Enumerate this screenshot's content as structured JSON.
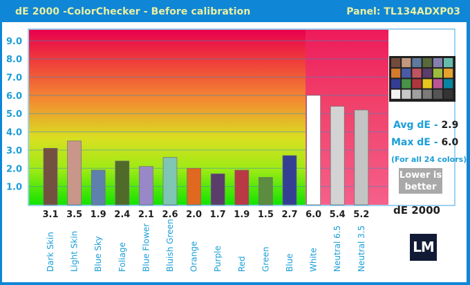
{
  "header": {
    "title": "dE 2000 -ColorChecker - Before calibration",
    "panel": "Panel: TL134ADXP03"
  },
  "side": {
    "avg_label": "Avg dE - ",
    "avg_value": "2.9",
    "max_label": "Max dE - ",
    "max_value": "6.0",
    "note": "(For all 24 colors)",
    "lower_line1": "Lower is",
    "lower_line2": "better",
    "metric": "dE 2000",
    "logo": "LM"
  },
  "colors": {
    "frame": "#0f86d6",
    "accent_text": "#1a9ed9",
    "title_text": "#e9f0a2",
    "white_region": "#ffffff"
  },
  "colorchecker_swatches": [
    "#734b3d",
    "#c2977f",
    "#5f7a9d",
    "#59693d",
    "#8480af",
    "#66bcab",
    "#d47a2c",
    "#4a5ba6",
    "#c05461",
    "#5c3d6b",
    "#9ebc40",
    "#e5a22e",
    "#343d96",
    "#479448",
    "#af363c",
    "#e7c71f",
    "#bb5695",
    "#0886a1",
    "#f3f3f2",
    "#c8c8c8",
    "#a0a0a0",
    "#7a7a79",
    "#555555",
    "#343434"
  ],
  "chart_data": {
    "type": "bar",
    "title": "dE 2000 -ColorChecker - Before calibration",
    "xlabel": "",
    "ylabel": "",
    "ylim": [
      0,
      9.6
    ],
    "yticks": [
      1.0,
      2.0,
      3.0,
      4.0,
      5.0,
      6.0,
      7.0,
      8.0,
      9.0
    ],
    "grid": true,
    "categories": [
      "Dark Skin",
      "Light Skin",
      "Blue Sky",
      "Foliage",
      "Blue Flower",
      "Bluish Green",
      "Orange",
      "Purple",
      "Red",
      "Green",
      "Blue",
      "White",
      "Neutral 6.5",
      "Neutral 3.5"
    ],
    "values": [
      3.1,
      3.5,
      1.9,
      2.4,
      2.1,
      2.6,
      2.0,
      1.7,
      1.9,
      1.5,
      2.7,
      6.0,
      5.4,
      5.2
    ],
    "value_labels": [
      "3.1",
      "3.5",
      "1.9",
      "2.4",
      "2.1",
      "2.6",
      "2.0",
      "1.7",
      "1.9",
      "1.5",
      "2.7",
      "6.0",
      "5.4",
      "5.2"
    ],
    "tick_labels": [
      "1.0",
      "2.0",
      "3.0",
      "4.0",
      "5.0",
      "6.0",
      "7.0",
      "8.0",
      "9.0"
    ],
    "bar_colors": [
      "#73503f",
      "#c9968a",
      "#5d80ad",
      "#4f6a29",
      "#9988c7",
      "#7fc5b4",
      "#e06820",
      "#5a3d6b",
      "#b93944",
      "#5c8c3f",
      "#343f94",
      "#ffffff",
      "#d3d3d3",
      "#c4c4c4"
    ]
  }
}
